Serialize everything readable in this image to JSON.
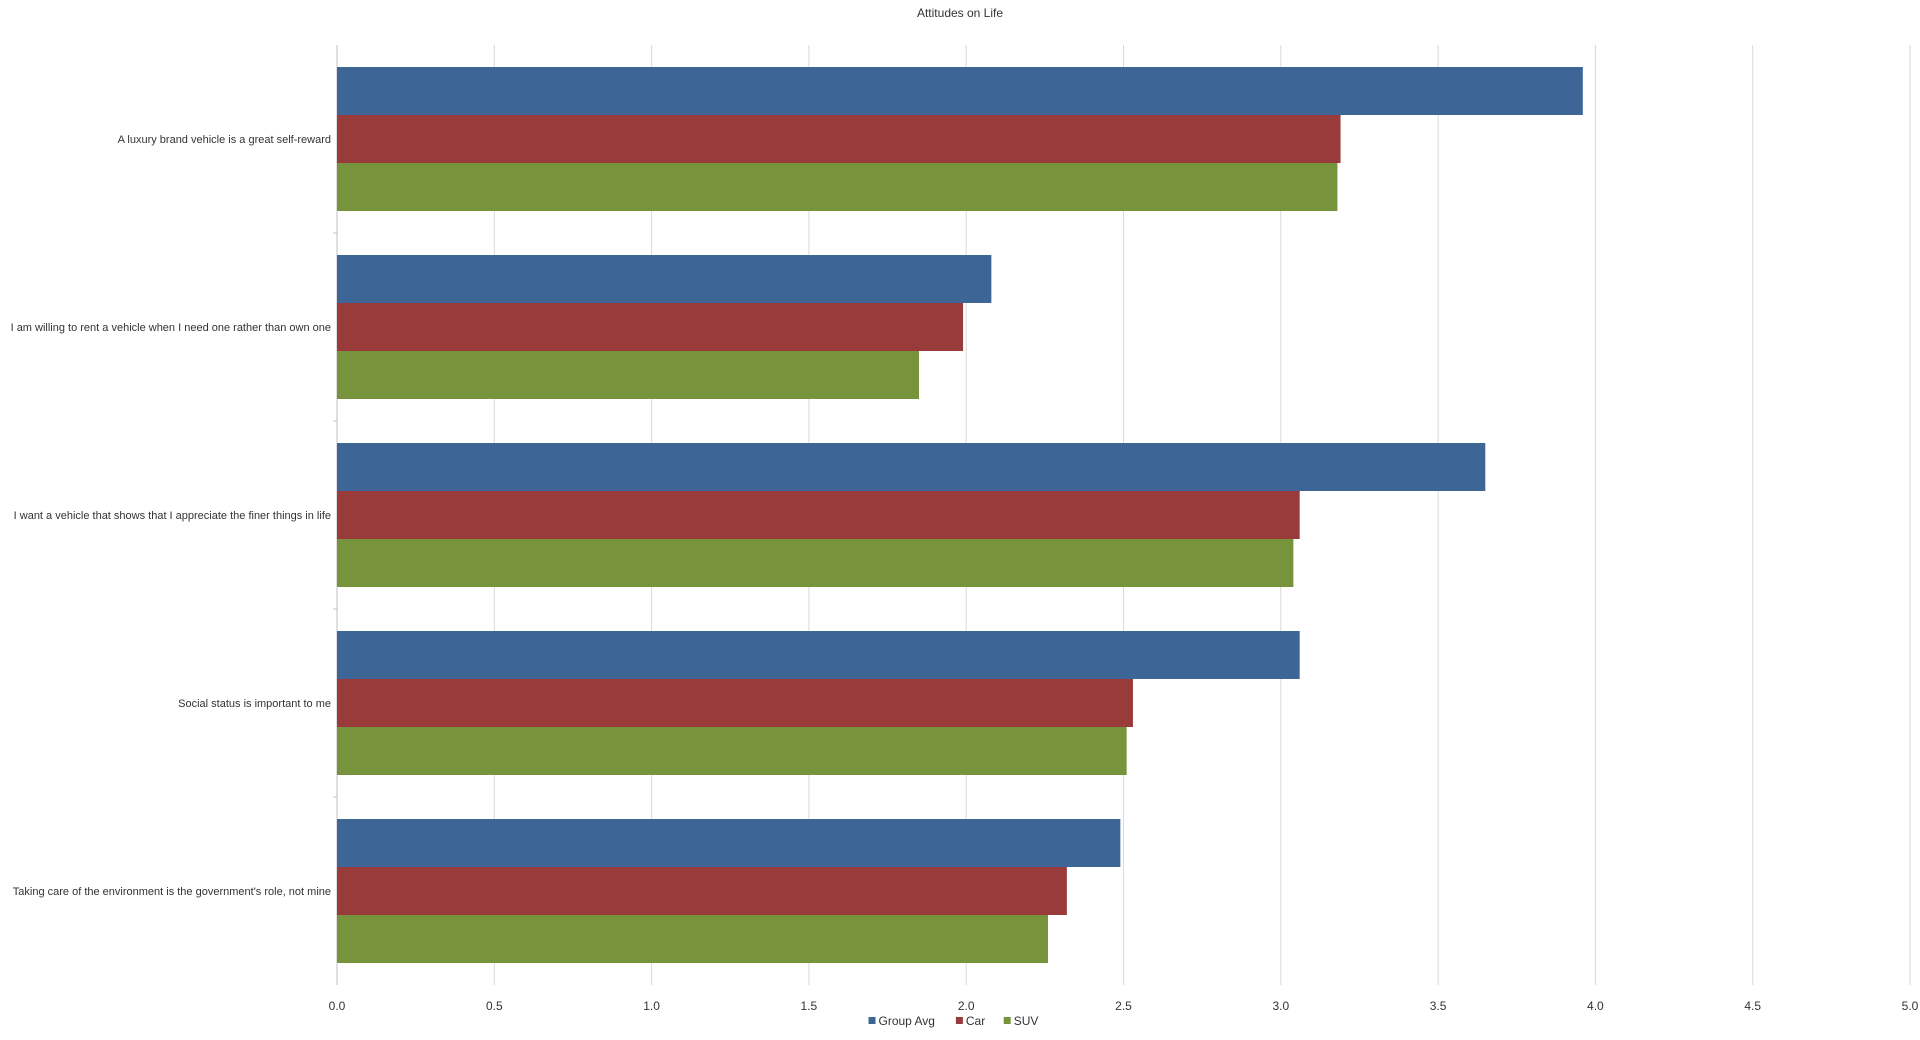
{
  "chart_data": {
    "type": "bar",
    "orientation": "horizontal",
    "title": "Attitudes on Life",
    "xlabel": "",
    "ylabel": "",
    "xlim": [
      0,
      5
    ],
    "xticks": [
      "0.0",
      "0.5",
      "1.0",
      "1.5",
      "2.0",
      "2.5",
      "3.0",
      "3.5",
      "4.0",
      "4.5",
      "5.0"
    ],
    "grid": true,
    "legend_position": "bottom-center",
    "categories": [
      "A luxury brand vehicle is a great self-reward",
      "I am willing to rent a vehicle when I need one rather than own one",
      "I want a vehicle that shows that I appreciate the finer things in life",
      "Social status is important to me",
      "Taking care of the environment is the government's role, not mine"
    ],
    "series": [
      {
        "name": "Group Avg",
        "color": "#3d6595",
        "values": [
          3.96,
          2.08,
          3.65,
          3.06,
          2.49
        ]
      },
      {
        "name": "Car",
        "color": "#9a3b3b",
        "values": [
          3.19,
          1.99,
          3.06,
          2.53,
          2.32
        ]
      },
      {
        "name": "SUV",
        "color": "#77943d",
        "values": [
          3.18,
          1.85,
          3.04,
          2.51,
          2.26
        ]
      }
    ]
  }
}
